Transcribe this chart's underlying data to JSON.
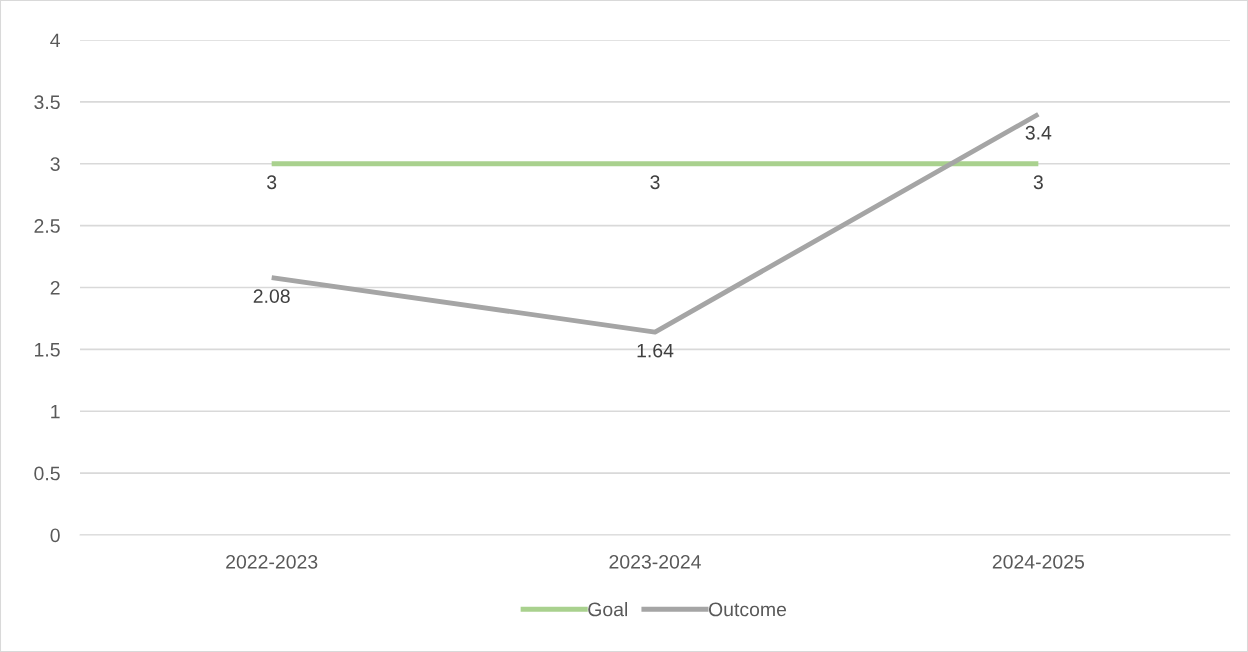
{
  "chart_data": {
    "type": "line",
    "categories": [
      "2022-2023",
      "2023-2024",
      "2024-2025"
    ],
    "series": [
      {
        "name": "Goal",
        "color": "#a9d18e",
        "values": [
          3,
          3,
          3
        ]
      },
      {
        "name": "Outcome",
        "color": "#a5a5a5",
        "values": [
          2.08,
          1.64,
          3.4
        ]
      }
    ],
    "ylim": [
      0,
      4
    ],
    "yticks": [
      0,
      0.5,
      1,
      1.5,
      2,
      2.5,
      3,
      3.5,
      4
    ],
    "grid": "y",
    "legend": "bottom",
    "data_labels": true,
    "marker": "none",
    "line_style": "solid"
  }
}
